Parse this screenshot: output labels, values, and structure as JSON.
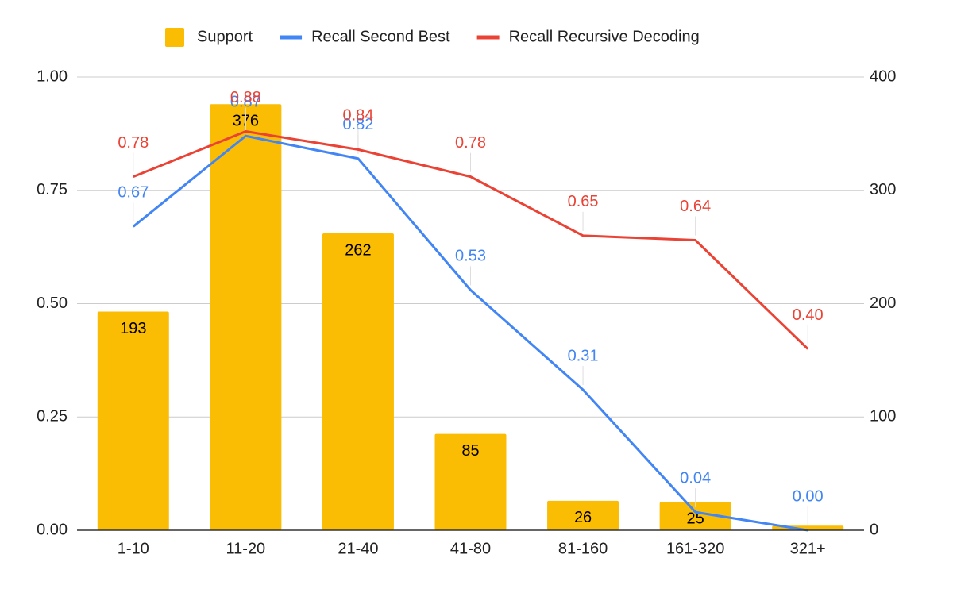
{
  "chart_data": {
    "type": "combo",
    "categories": [
      "1-10",
      "11-20",
      "21-40",
      "41-80",
      "81-160",
      "161-320",
      "321+"
    ],
    "series": [
      {
        "name": "Support",
        "type": "bar",
        "axis": "y2",
        "color": "#fbbc04",
        "values": [
          193,
          376,
          262,
          85,
          26,
          25,
          4
        ],
        "value_labels": [
          "193",
          "376",
          "262",
          "85",
          "26",
          "25",
          null
        ]
      },
      {
        "name": "Recall Second Best",
        "type": "line",
        "color": "#4285f4",
        "values": [
          0.67,
          0.87,
          0.82,
          0.53,
          0.31,
          0.04,
          0.0
        ],
        "value_labels": [
          "0.67",
          "0.87",
          "0.82",
          "0.53",
          "0.31",
          "0.04",
          "0.00"
        ]
      },
      {
        "name": "Recall Recursive Decoding",
        "type": "line",
        "color": "#ea4335",
        "values": [
          0.78,
          0.88,
          0.84,
          0.78,
          0.65,
          0.64,
          0.4
        ],
        "value_labels": [
          "0.78",
          "0.88",
          "0.84",
          "0.78",
          "0.65",
          "0.64",
          "0.40"
        ]
      }
    ],
    "ylim": [
      0,
      1
    ],
    "yticks": [
      {
        "value": 0,
        "label": "0.00"
      },
      {
        "value": 0.25,
        "label": "0.25"
      },
      {
        "value": 0.5,
        "label": "0.50"
      },
      {
        "value": 0.75,
        "label": "0.75"
      },
      {
        "value": 1,
        "label": "1.00"
      }
    ],
    "y2lim": [
      0,
      400
    ],
    "y2ticks": [
      0,
      100,
      200,
      300,
      400
    ],
    "grid": true,
    "legend": "top"
  }
}
